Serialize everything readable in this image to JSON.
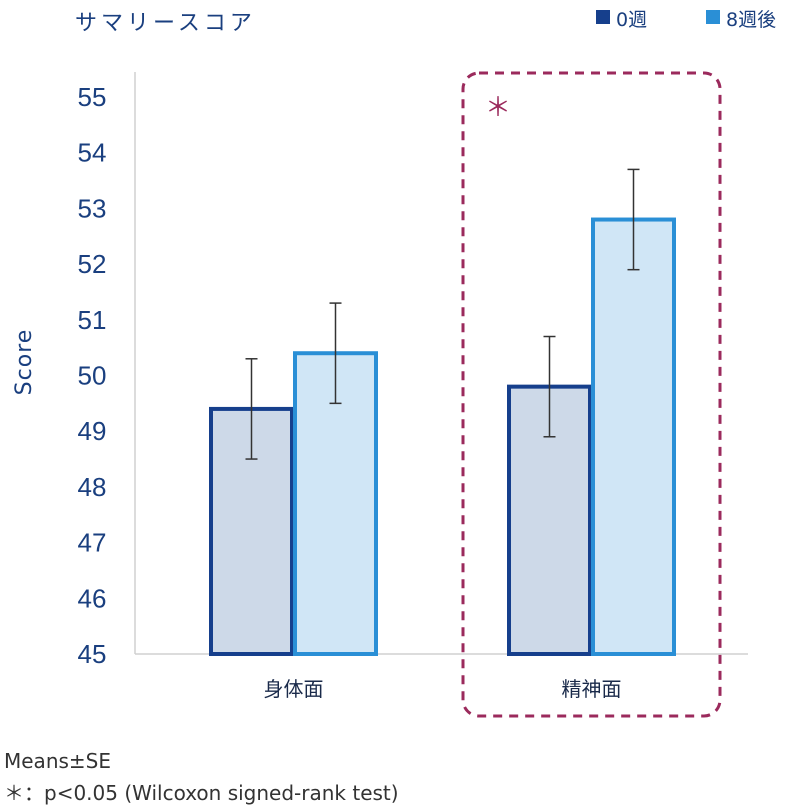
{
  "chart_data": {
    "type": "bar",
    "title": "サマリースコア",
    "ylabel": "Score",
    "xlabel": "",
    "ylim": [
      45,
      55
    ],
    "yticks": [
      45,
      46,
      47,
      48,
      49,
      50,
      51,
      52,
      53,
      54,
      55
    ],
    "categories": [
      "身体面",
      "精神面"
    ],
    "series": [
      {
        "name": "0週",
        "values": [
          49.4,
          49.8
        ],
        "error": [
          0.9,
          0.9
        ]
      },
      {
        "name": "8週後",
        "values": [
          50.4,
          52.8
        ],
        "error": [
          0.9,
          0.9
        ]
      }
    ],
    "legend_position": "top-right",
    "grid": false,
    "annotations": [
      {
        "text": "＊",
        "category": "精神面"
      }
    ]
  },
  "colors": {
    "series_fill": [
      "#cdd9e8",
      "#d0e6f6"
    ],
    "series_stroke": [
      "#163f8c",
      "#2a8fd6"
    ],
    "text": "#1a3f7f",
    "highlight_box": "#9b2a5c"
  },
  "notes": {
    "line1": "Means±SE",
    "line2": "＊：p<0.05 (Wilcoxon signed-rank test)"
  }
}
